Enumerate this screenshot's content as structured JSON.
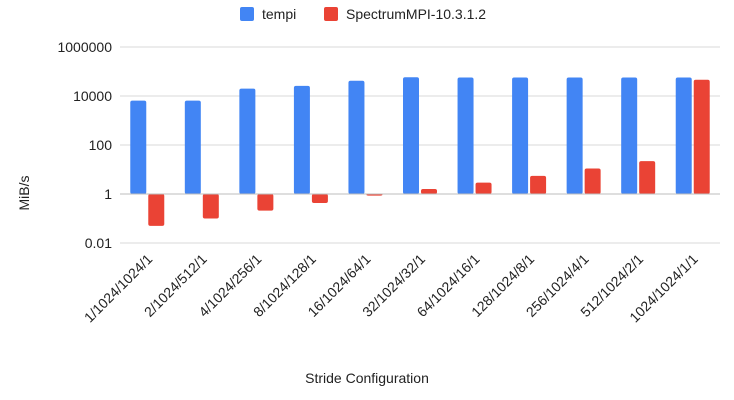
{
  "chart_data": {
    "type": "bar",
    "title": "",
    "xlabel": "Stride Configuration",
    "ylabel": "MiB/s",
    "yscale": "log",
    "ylim": [
      0.01,
      1000000
    ],
    "yticks": [
      "0.01",
      "1",
      "100",
      "10000",
      "1000000"
    ],
    "grid": true,
    "legend_position": "top",
    "categories": [
      "1/1024/1024/1",
      "2/1024/512/1",
      "4/1024/256/1",
      "8/1024/128/1",
      "16/1024/64/1",
      "32/1024/32/1",
      "64/1024/16/1",
      "128/1024/8/1",
      "256/1024/4/1",
      "512/1024/2/1",
      "1024/1024/1/1"
    ],
    "series": [
      {
        "name": "tempi",
        "color": "#4285f4",
        "values": [
          6500,
          6500,
          20000,
          26000,
          42000,
          58000,
          57000,
          57000,
          57000,
          57000,
          57000
        ]
      },
      {
        "name": "SpectrumMPI-10.3.1.2",
        "color": "#ea4335",
        "values": [
          0.05,
          0.1,
          0.21,
          0.43,
          0.86,
          1.6,
          2.9,
          5.5,
          11,
          22,
          46000
        ]
      }
    ]
  }
}
